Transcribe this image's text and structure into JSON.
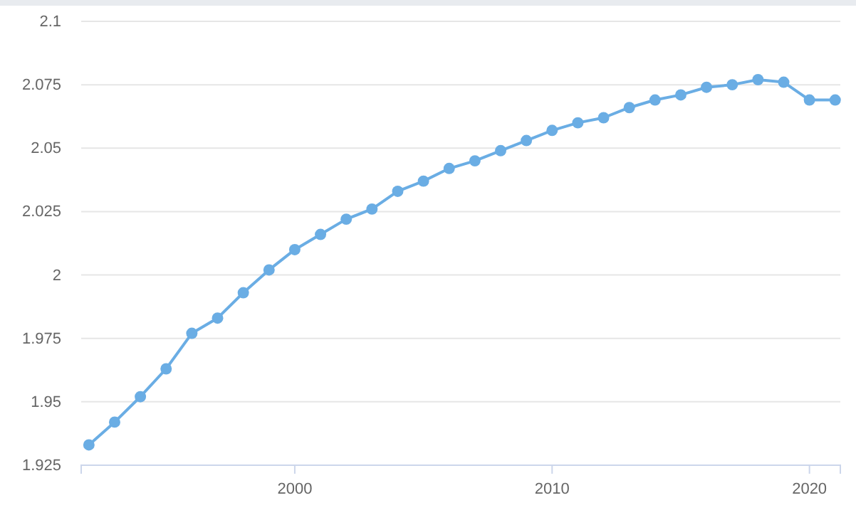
{
  "chart_data": {
    "type": "line",
    "x": [
      1992,
      1993,
      1994,
      1995,
      1996,
      1997,
      1998,
      1999,
      2000,
      2001,
      2002,
      2003,
      2004,
      2005,
      2006,
      2007,
      2008,
      2009,
      2010,
      2011,
      2012,
      2013,
      2014,
      2015,
      2016,
      2017,
      2018,
      2019,
      2020,
      2021
    ],
    "series": [
      {
        "color": "#6aade4",
        "values": [
          1.933,
          1.942,
          1.952,
          1.963,
          1.977,
          1.983,
          1.993,
          2.002,
          2.01,
          2.016,
          2.022,
          2.026,
          2.033,
          2.037,
          2.042,
          2.045,
          2.049,
          2.053,
          2.057,
          2.06,
          2.062,
          2.066,
          2.069,
          2.071,
          2.074,
          2.075,
          2.077,
          2.076,
          2.069,
          2.069
        ]
      }
    ],
    "xlim": [
      1991.7,
      2021.2
    ],
    "xticks": [
      2000,
      2010,
      2020
    ],
    "ylim": [
      1.925,
      2.1
    ],
    "yticks": [
      1.925,
      1.95,
      1.975,
      2,
      2.025,
      2.05,
      2.075,
      2.1
    ],
    "grid": "y",
    "marker": "circle",
    "line_style": "solid"
  }
}
